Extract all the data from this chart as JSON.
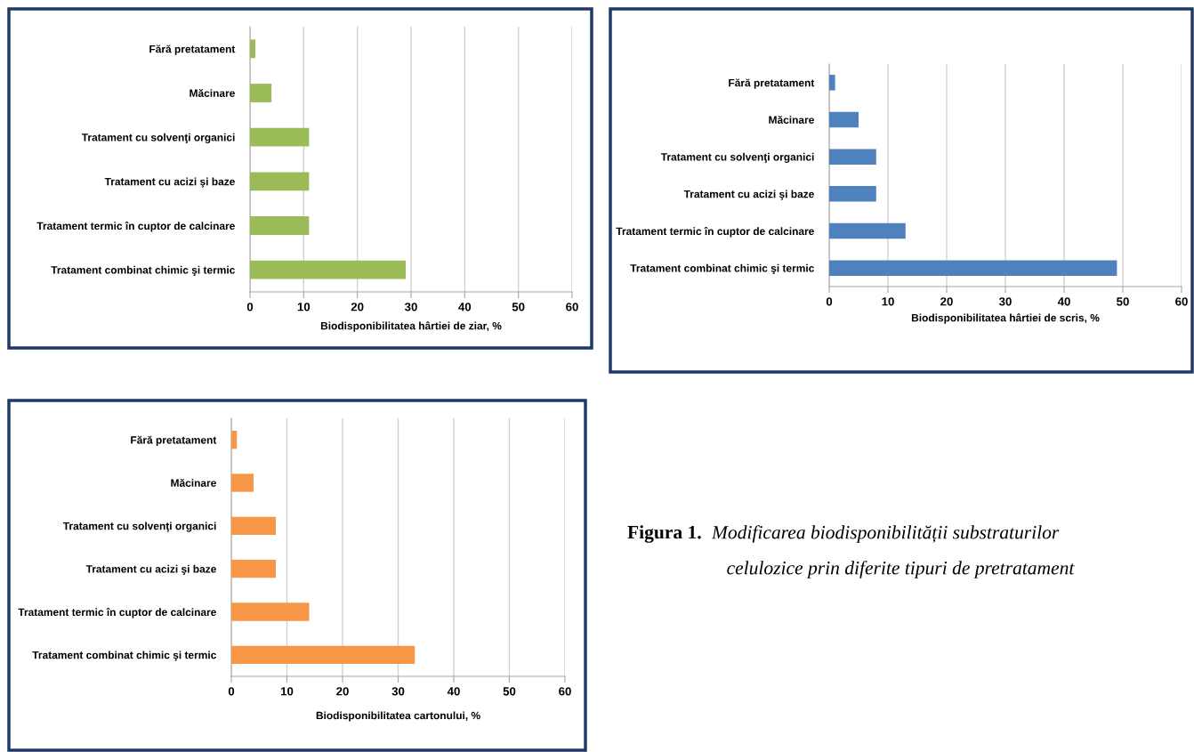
{
  "chart_data": [
    {
      "type": "bar",
      "orientation": "horizontal",
      "xlabel": "Biodisponibilitatea hârtiei de ziar, %",
      "categories": [
        "Fără pretatament",
        "Măcinare",
        "Tratament cu solvenţi organici",
        "Tratament cu acizi şi baze",
        "Tratament termic în cuptor de calcinare",
        "Tratament combinat chimic şi termic"
      ],
      "values": [
        1,
        4,
        11,
        11,
        11,
        29
      ],
      "color": "#9bbb59",
      "xlim": [
        0,
        60
      ],
      "xticks": [
        0,
        10,
        20,
        30,
        40,
        50,
        60
      ],
      "grid": "x"
    },
    {
      "type": "bar",
      "orientation": "horizontal",
      "xlabel": "Biodisponibilitatea hârtiei de scris, %",
      "categories": [
        "Fără pretatament",
        "Măcinare",
        "Tratament cu solvenţi organici",
        "Tratament cu acizi şi baze",
        "Tratament termic în cuptor de calcinare",
        "Tratament combinat chimic şi termic"
      ],
      "values": [
        1,
        5,
        8,
        8,
        13,
        49
      ],
      "color": "#4f81bd",
      "xlim": [
        0,
        60
      ],
      "xticks": [
        0,
        10,
        20,
        30,
        40,
        50,
        60
      ],
      "grid": "x"
    },
    {
      "type": "bar",
      "orientation": "horizontal",
      "xlabel": "Biodisponibilitatea cartonului, %",
      "categories": [
        "Fără pretatament",
        "Măcinare",
        "Tratament cu solvenţi organici",
        "Tratament cu acizi şi baze",
        "Tratament termic în cuptor de calcinare",
        "Tratament combinat chimic şi termic"
      ],
      "values": [
        1,
        4,
        8,
        8,
        14,
        33
      ],
      "color": "#f79646",
      "xlim": [
        0,
        60
      ],
      "xticks": [
        0,
        10,
        20,
        30,
        40,
        50,
        60
      ],
      "grid": "x"
    },
    {
      "type": "other",
      "title": "Figura 1.",
      "annotations": [
        "Modificarea biodisponibilității substraturilor",
        "celulozice prin diferite tipuri de pretratament"
      ]
    }
  ]
}
